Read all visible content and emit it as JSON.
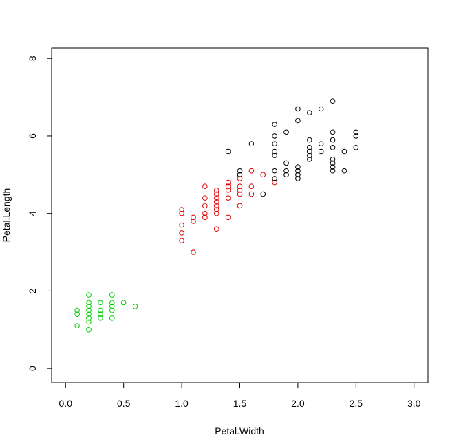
{
  "chart_data": {
    "type": "scatter",
    "title": "",
    "xlabel": "Petal.Width",
    "ylabel": "Petal.Length",
    "xlim": [
      -0.12,
      3.12
    ],
    "ylim": [
      -0.37,
      8.27
    ],
    "xticks": [
      0.0,
      0.5,
      1.0,
      1.5,
      2.0,
      2.5,
      3.0
    ],
    "xtick_labels": [
      "0.0",
      "0.5",
      "1.0",
      "1.5",
      "2.0",
      "2.5",
      "3.0"
    ],
    "yticks": [
      0,
      2,
      4,
      6,
      8
    ],
    "ytick_labels": [
      "0",
      "2",
      "4",
      "6",
      "8"
    ],
    "grid": false,
    "marker": "open-circle",
    "series": [
      {
        "color": "#00cd00",
        "points": [
          [
            0.1,
            1.5
          ],
          [
            0.1,
            1.4
          ],
          [
            0.1,
            1.1
          ],
          [
            0.2,
            1.9
          ],
          [
            0.2,
            1.7
          ],
          [
            0.2,
            1.6
          ],
          [
            0.2,
            1.5
          ],
          [
            0.2,
            1.4
          ],
          [
            0.2,
            1.3
          ],
          [
            0.2,
            1.2
          ],
          [
            0.2,
            1.0
          ],
          [
            0.3,
            1.7
          ],
          [
            0.3,
            1.5
          ],
          [
            0.3,
            1.4
          ],
          [
            0.3,
            1.3
          ],
          [
            0.4,
            1.9
          ],
          [
            0.4,
            1.7
          ],
          [
            0.4,
            1.6
          ],
          [
            0.4,
            1.5
          ],
          [
            0.4,
            1.3
          ],
          [
            0.5,
            1.7
          ],
          [
            0.6,
            1.6
          ]
        ]
      },
      {
        "color": "#df0000",
        "points": [
          [
            1.0,
            4.1
          ],
          [
            1.0,
            4.0
          ],
          [
            1.0,
            3.7
          ],
          [
            1.0,
            3.5
          ],
          [
            1.0,
            3.3
          ],
          [
            1.1,
            3.9
          ],
          [
            1.1,
            3.8
          ],
          [
            1.1,
            3.0
          ],
          [
            1.2,
            4.7
          ],
          [
            1.2,
            4.4
          ],
          [
            1.2,
            4.2
          ],
          [
            1.2,
            4.0
          ],
          [
            1.2,
            3.9
          ],
          [
            1.3,
            4.6
          ],
          [
            1.3,
            4.5
          ],
          [
            1.3,
            4.4
          ],
          [
            1.3,
            4.3
          ],
          [
            1.3,
            4.2
          ],
          [
            1.3,
            4.1
          ],
          [
            1.3,
            4.0
          ],
          [
            1.3,
            3.6
          ],
          [
            1.4,
            4.8
          ],
          [
            1.4,
            4.7
          ],
          [
            1.4,
            4.6
          ],
          [
            1.4,
            4.4
          ],
          [
            1.4,
            3.9
          ],
          [
            1.5,
            4.9
          ],
          [
            1.5,
            4.7
          ],
          [
            1.5,
            4.6
          ],
          [
            1.5,
            4.5
          ],
          [
            1.5,
            4.2
          ],
          [
            1.6,
            5.1
          ],
          [
            1.6,
            4.7
          ],
          [
            1.6,
            4.5
          ],
          [
            1.7,
            5.0
          ],
          [
            1.8,
            4.8
          ]
        ]
      },
      {
        "color": "#000000",
        "points": [
          [
            1.4,
            5.6
          ],
          [
            1.5,
            5.1
          ],
          [
            1.5,
            5.0
          ],
          [
            1.6,
            5.8
          ],
          [
            1.7,
            4.5
          ],
          [
            1.8,
            6.3
          ],
          [
            1.8,
            6.0
          ],
          [
            1.8,
            5.8
          ],
          [
            1.8,
            5.6
          ],
          [
            1.8,
            5.5
          ],
          [
            1.8,
            5.1
          ],
          [
            1.8,
            4.9
          ],
          [
            1.9,
            6.1
          ],
          [
            1.9,
            5.3
          ],
          [
            1.9,
            5.1
          ],
          [
            1.9,
            5.0
          ],
          [
            2.0,
            6.7
          ],
          [
            2.0,
            6.4
          ],
          [
            2.0,
            5.2
          ],
          [
            2.0,
            5.1
          ],
          [
            2.0,
            5.0
          ],
          [
            2.0,
            4.9
          ],
          [
            2.1,
            6.6
          ],
          [
            2.1,
            5.9
          ],
          [
            2.1,
            5.7
          ],
          [
            2.1,
            5.6
          ],
          [
            2.1,
            5.5
          ],
          [
            2.1,
            5.4
          ],
          [
            2.2,
            6.7
          ],
          [
            2.2,
            5.8
          ],
          [
            2.2,
            5.6
          ],
          [
            2.3,
            6.9
          ],
          [
            2.3,
            6.1
          ],
          [
            2.3,
            5.9
          ],
          [
            2.3,
            5.7
          ],
          [
            2.3,
            5.4
          ],
          [
            2.3,
            5.3
          ],
          [
            2.3,
            5.2
          ],
          [
            2.3,
            5.1
          ],
          [
            2.4,
            5.6
          ],
          [
            2.4,
            5.1
          ],
          [
            2.5,
            6.1
          ],
          [
            2.5,
            6.0
          ],
          [
            2.5,
            5.7
          ]
        ]
      }
    ]
  }
}
